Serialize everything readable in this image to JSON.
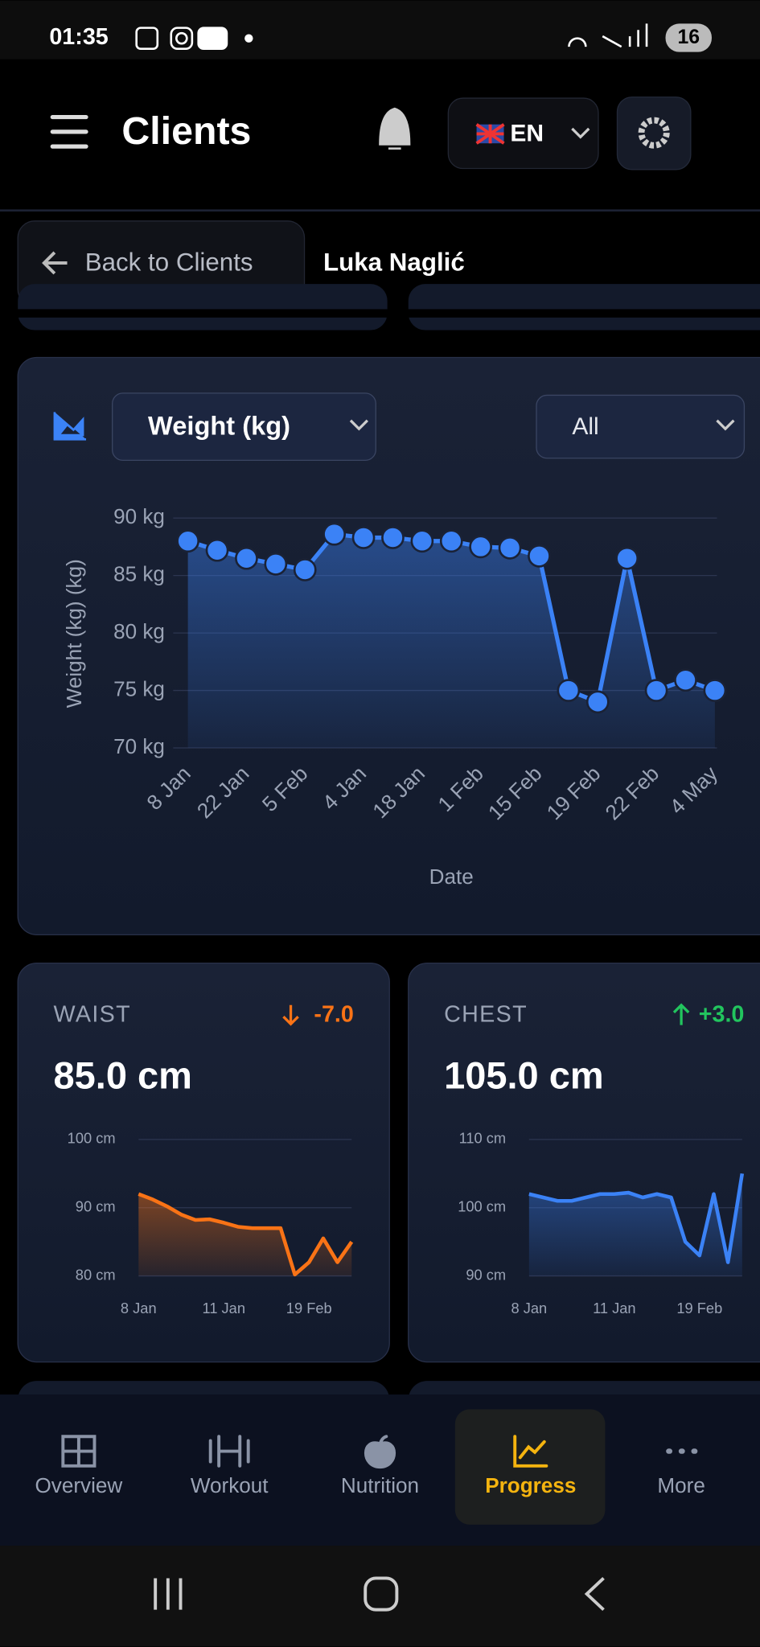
{
  "status_bar": {
    "time": "01:35",
    "battery": "16"
  },
  "header": {
    "title": "Clients",
    "language": "EN"
  },
  "breadcrumb": {
    "back": "Back to Clients",
    "client": "Luka Naglić"
  },
  "weight_chart": {
    "type": "line",
    "metric": "Weight (kg)",
    "range": "All",
    "ylabel": "Weight (kg) (kg)",
    "xlabel": "Date",
    "categories": [
      "8 Jan",
      null,
      "22 Jan",
      null,
      "5 Feb",
      null,
      "4 Jan",
      null,
      "18 Jan",
      null,
      "1 Feb",
      null,
      "15 Feb",
      null,
      "19 Feb",
      null,
      "22 Feb",
      null,
      "4 May"
    ],
    "values": [
      88,
      87.2,
      86.5,
      86,
      85.5,
      88.6,
      88.3,
      88.3,
      88,
      88,
      87.5,
      87.4,
      86.7,
      75,
      74,
      86.5,
      75,
      75.9,
      75
    ],
    "ylim": [
      70,
      90
    ],
    "yticks": [
      {
        "value": 70,
        "label": "70 kg"
      },
      {
        "value": 75,
        "label": "75 kg"
      },
      {
        "value": 80,
        "label": "80 kg"
      },
      {
        "value": 85,
        "label": "85 kg"
      },
      {
        "value": 90,
        "label": "90 kg"
      }
    ],
    "color": "#3b82f6",
    "grid": true
  },
  "metrics": [
    {
      "name": "WAIST",
      "change": "-7.0",
      "change_color": "#f97316",
      "value": "85.0 cm",
      "chart": {
        "type": "line",
        "categories": [
          "8 Jan",
          null,
          null,
          null,
          null,
          null,
          "11 Jan",
          null,
          null,
          null,
          null,
          null,
          "19 Feb",
          null,
          null,
          null
        ],
        "values": [
          92,
          91.2,
          90.2,
          89,
          88.2,
          88.3,
          87.8,
          87.2,
          87,
          87,
          87,
          80.2,
          82,
          85.5,
          82,
          85
        ],
        "ylim": [
          80,
          100
        ],
        "yticks": [
          {
            "value": 80,
            "label": "80 cm"
          },
          {
            "value": 90,
            "label": "90 cm"
          },
          {
            "value": 100,
            "label": "100 cm"
          }
        ],
        "color": "#f97316",
        "grid": true
      }
    },
    {
      "name": "CHEST",
      "change": "+3.0",
      "change_color": "#22c55e",
      "value": "105.0 cm",
      "chart": {
        "type": "line",
        "categories": [
          "8 Jan",
          null,
          null,
          null,
          null,
          null,
          "11 Jan",
          null,
          null,
          null,
          null,
          null,
          "19 Feb",
          null,
          null,
          null
        ],
        "values": [
          102,
          101.5,
          101,
          101,
          101.5,
          102,
          102,
          102.2,
          101.5,
          102,
          101.5,
          95,
          93,
          102,
          92,
          105
        ],
        "ylim": [
          90,
          110
        ],
        "yticks": [
          {
            "value": 90,
            "label": "90 cm"
          },
          {
            "value": 100,
            "label": "100 cm"
          },
          {
            "value": 110,
            "label": "110 cm"
          }
        ],
        "color": "#3b82f6",
        "grid": true
      }
    }
  ],
  "nav": {
    "items": [
      "Overview",
      "Workout",
      "Nutrition",
      "Progress",
      "More"
    ],
    "active": 3
  }
}
